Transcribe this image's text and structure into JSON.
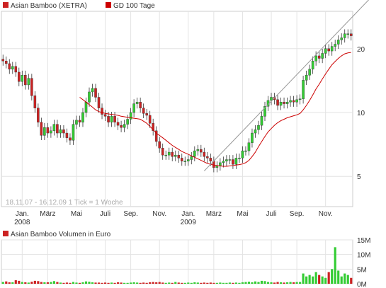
{
  "legend": {
    "series_label": "Asian Bamboo (XETRA)",
    "series_color": "#cc2222",
    "ma_label": "GD 100 Tage",
    "ma_color": "#cc0000"
  },
  "info_text": "18.11.07 - 16.12.09   1 Tick = 1 Woche",
  "volume_legend": "Asian Bamboo Volumen in Euro",
  "colors": {
    "up": "#33cc33",
    "down": "#cc2222",
    "ma": "#cc0000",
    "trend": "#999999"
  },
  "chart_data": [
    {
      "type": "candlestick",
      "yscale": "log",
      "ylim": [
        3.6,
        30
      ],
      "ytick_labels": [
        "5",
        "10",
        "20"
      ],
      "yticks": [
        5,
        10,
        20
      ],
      "xtick_labels": [
        "Jan.",
        "März",
        "Mai",
        "Juli",
        "Sep.",
        "Nov.",
        "Jan.",
        "März",
        "Mai",
        "Juli",
        "Sep.",
        "Nov."
      ],
      "xtick_weeks": [
        6,
        14,
        23,
        32,
        40,
        49,
        58,
        66,
        75,
        84,
        92,
        101
      ],
      "year_labels": [
        "2008",
        "2009"
      ],
      "year_label_weeks": [
        6,
        58
      ],
      "close": [
        17.5,
        17.0,
        16.0,
        16.5,
        15.5,
        14.0,
        15.0,
        13.5,
        14.5,
        12.0,
        10.5,
        9.0,
        7.8,
        8.5,
        8.0,
        8.2,
        8.8,
        8.0,
        8.3,
        8.0,
        7.6,
        7.4,
        8.8,
        9.2,
        9.0,
        10.0,
        11.2,
        12.5,
        13.0,
        11.8,
        10.5,
        9.8,
        9.6,
        9.0,
        9.6,
        9.0,
        8.7,
        8.5,
        8.8,
        9.3,
        10.0,
        11.0,
        11.2,
        10.5,
        9.9,
        9.7,
        8.9,
        8.2,
        7.3,
        6.8,
        6.3,
        6.3,
        6.5,
        6.2,
        6.3,
        6.1,
        5.9,
        5.9,
        6.0,
        6.2,
        6.6,
        6.7,
        6.5,
        6.2,
        6.1,
        5.9,
        5.5,
        5.6,
        5.8,
        5.9,
        6.0,
        6.0,
        5.7,
        6.1,
        6.1,
        6.6,
        6.6,
        7.2,
        8.0,
        8.3,
        8.7,
        9.6,
        10.7,
        11.4,
        11.8,
        11.5,
        10.8,
        11.2,
        11.0,
        11.2,
        11.4,
        11.2,
        11.5,
        11.6,
        14.2,
        15.0,
        16.0,
        17.5,
        18.5,
        18.0,
        19.0,
        20.0,
        19.5,
        20.5,
        21.0,
        22.0,
        22.5,
        23.5,
        23.5,
        23.0
      ],
      "ma100": [
        null,
        null,
        null,
        null,
        null,
        null,
        null,
        null,
        null,
        null,
        null,
        null,
        null,
        null,
        null,
        null,
        null,
        null,
        null,
        null,
        null,
        null,
        null,
        null,
        11.8,
        11.5,
        11.2,
        10.9,
        10.6,
        10.3,
        10.1,
        10.0,
        9.9,
        9.85,
        9.8,
        9.75,
        9.7,
        9.6,
        9.55,
        9.5,
        9.45,
        9.4,
        9.35,
        9.3,
        9.1,
        8.9,
        8.6,
        8.3,
        8.0,
        7.8,
        7.6,
        7.4,
        7.2,
        7.0,
        6.85,
        6.7,
        6.55,
        6.45,
        6.35,
        6.25,
        6.15,
        6.05,
        5.95,
        5.85,
        5.75,
        5.7,
        5.65,
        5.62,
        5.6,
        5.58,
        5.58,
        5.6,
        5.62,
        5.65,
        5.68,
        5.72,
        5.8,
        5.95,
        6.2,
        6.5,
        6.9,
        7.3,
        7.7,
        8.1,
        8.4,
        8.7,
        8.95,
        9.15,
        9.3,
        9.45,
        9.55,
        9.65,
        9.75,
        9.9,
        10.3,
        10.8,
        11.4,
        12.1,
        12.9,
        13.6,
        14.4,
        15.2,
        16.0,
        16.8,
        17.4,
        18.0,
        18.5,
        18.9,
        19.1,
        19.2
      ],
      "trendline": [
        [
          63,
          5.3
        ],
        [
          106,
          25.0
        ]
      ]
    },
    {
      "type": "bar",
      "ylim": [
        0,
        15
      ],
      "ytick_labels": [
        "0M",
        "5M",
        "10M",
        "15M"
      ],
      "yticks": [
        0,
        5,
        10,
        15
      ],
      "unit": "M",
      "values": [
        0.6,
        0.8,
        0.5,
        0.5,
        1.2,
        1.0,
        0.6,
        0.5,
        0.4,
        0.7,
        1.0,
        0.9,
        0.6,
        0.5,
        0.5,
        0.6,
        0.9,
        0.6,
        0.4,
        0.3,
        0.4,
        0.3,
        0.6,
        0.4,
        0.3,
        0.5,
        0.8,
        0.7,
        0.5,
        0.4,
        0.4,
        0.3,
        0.4,
        0.3,
        0.4,
        0.3,
        0.5,
        0.4,
        0.3,
        0.3,
        0.4,
        0.5,
        0.4,
        0.3,
        0.4,
        0.3,
        0.5,
        0.6,
        0.5,
        0.6,
        0.4,
        0.3,
        0.4,
        0.3,
        0.6,
        0.4,
        0.3,
        0.3,
        0.4,
        0.3,
        0.5,
        0.4,
        0.3,
        0.4,
        0.3,
        0.4,
        0.3,
        0.3,
        0.4,
        0.3,
        0.3,
        0.4,
        0.3,
        0.4,
        0.3,
        0.5,
        0.6,
        0.7,
        0.5,
        0.8,
        0.6,
        1.0,
        0.9,
        0.6,
        0.5,
        0.4,
        0.6,
        0.5,
        0.4,
        0.5,
        0.6,
        0.5,
        0.6,
        0.6,
        3.5,
        2.5,
        3.0,
        2.5,
        4.0,
        3.0,
        2.5,
        2.0,
        4.0,
        5.0,
        12.5,
        4.5,
        2.5,
        3.5,
        3.0,
        2.0
      ]
    }
  ]
}
